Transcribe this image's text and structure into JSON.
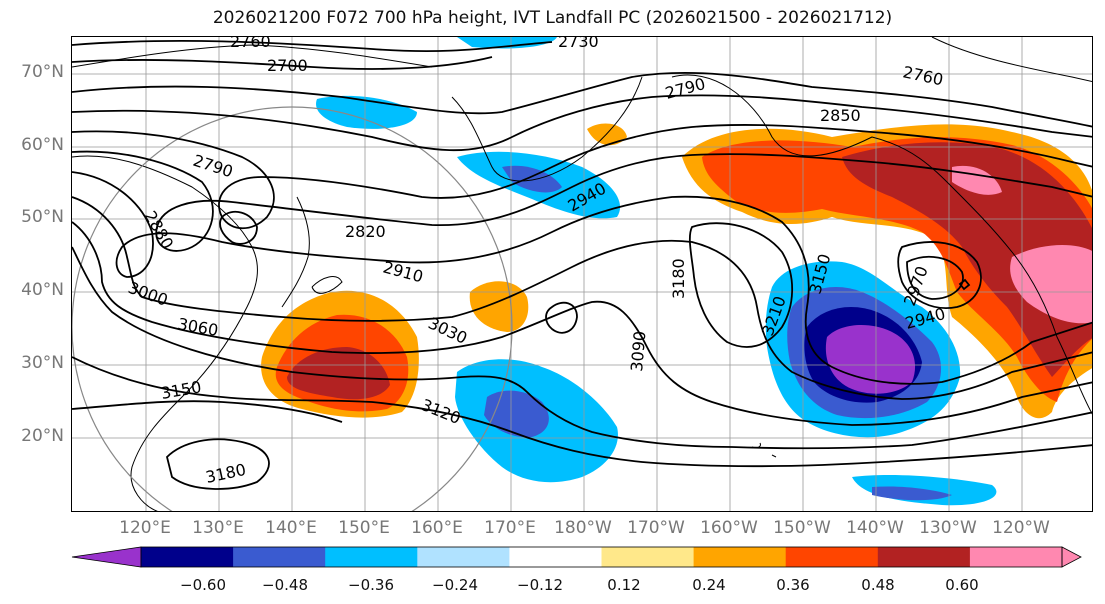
{
  "title": "2026021200 F072 700 hPa height, IVT Landfall PC (2026021500 - 2026021712)",
  "lat_labels": [
    "70°N",
    "60°N",
    "50°N",
    "40°N",
    "30°N",
    "20°N"
  ],
  "lon_labels": [
    "120°E",
    "130°E",
    "140°E",
    "150°E",
    "160°E",
    "170°E",
    "180°W",
    "170°W",
    "160°W",
    "150°W",
    "140°W",
    "130°W",
    "120°W"
  ],
  "colorbar": {
    "ticks": [
      "−0.60",
      "−0.48",
      "−0.36",
      "−0.24",
      "−0.12",
      "0.12",
      "0.24",
      "0.36",
      "0.48",
      "0.60"
    ],
    "colors": [
      "#9932cc",
      "#00008b",
      "#3a5bd0",
      "#00bfff",
      "#b0e2ff",
      "#ffffff",
      "#ffe88a",
      "#ffa500",
      "#ff4500",
      "#b22222",
      "#ff88b0",
      "#ff88b0"
    ]
  },
  "contour_labels": [
    "2760",
    "2730",
    "2700",
    "2790",
    "2850",
    "2760",
    "2790",
    "2880",
    "2820",
    "2940",
    "2910",
    "3000",
    "3030",
    "3060",
    "3180",
    "3150",
    "3210",
    "2970",
    "2940",
    "3090",
    "3120",
    "3150",
    "3180"
  ]
}
